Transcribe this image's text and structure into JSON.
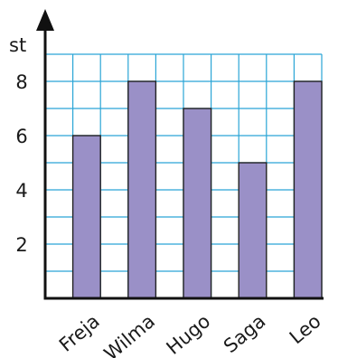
{
  "chart_data": {
    "type": "bar",
    "ylabel": "st",
    "xlabel": "",
    "title": "",
    "categories": [
      "Freja",
      "Wilma",
      "Hugo",
      "Saga",
      "Leo"
    ],
    "values": [
      6,
      8,
      7,
      5,
      8
    ],
    "ylim": [
      0,
      9
    ],
    "yticks": [
      "2",
      "4",
      "6",
      "8"
    ],
    "grid": true,
    "colors": {
      "bar_fill": "#9a90c7",
      "bar_stroke": "#222222",
      "grid": "#2aa5d6",
      "axis": "#111111"
    }
  }
}
